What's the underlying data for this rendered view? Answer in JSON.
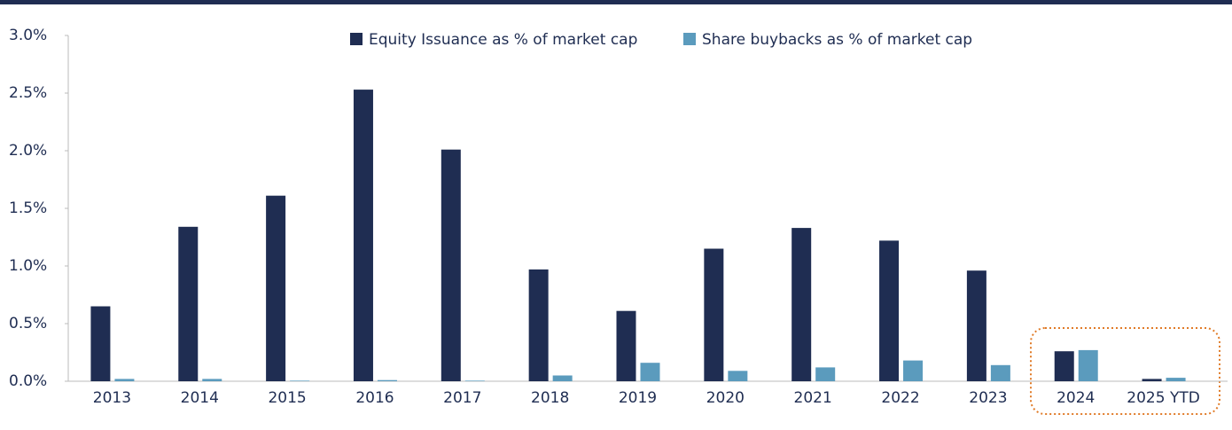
{
  "chart_data": {
    "type": "bar",
    "categories": [
      "2013",
      "2014",
      "2015",
      "2016",
      "2017",
      "2018",
      "2019",
      "2020",
      "2021",
      "2022",
      "2023",
      "2024",
      "2025 YTD"
    ],
    "series": [
      {
        "name": "Equity Issuance as % of market cap",
        "color": "#1f2d52",
        "values": [
          0.65,
          1.34,
          1.61,
          2.53,
          2.01,
          0.97,
          0.61,
          1.15,
          1.33,
          1.22,
          0.96,
          0.26,
          0.02
        ]
      },
      {
        "name": "Share buybacks as % of market cap",
        "color": "#5b9bbd",
        "values": [
          0.02,
          0.02,
          0.005,
          0.01,
          0.005,
          0.05,
          0.16,
          0.09,
          0.12,
          0.18,
          0.14,
          0.27,
          0.03
        ]
      }
    ],
    "ylim": [
      0,
      3
    ],
    "yticks": [
      {
        "value": 0,
        "label": "0.0%"
      },
      {
        "value": 0.5,
        "label": "0.5%"
      },
      {
        "value": 1,
        "label": "1.0%"
      },
      {
        "value": 1.5,
        "label": "1.5%"
      },
      {
        "value": 2,
        "label": "2.0%"
      },
      {
        "value": 2.5,
        "label": "2.5%"
      },
      {
        "value": 3,
        "label": "3.0%"
      }
    ]
  }
}
